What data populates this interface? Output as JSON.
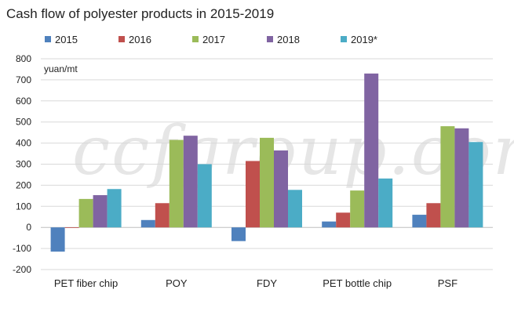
{
  "chart_data": {
    "type": "bar",
    "title": "Cash flow of polyester products in 2015-2019",
    "ylabel": "yuan/mt",
    "xlabel": "",
    "ylim": [
      -200,
      800
    ],
    "yticks": [
      -200,
      -100,
      0,
      100,
      200,
      300,
      400,
      500,
      600,
      700,
      800
    ],
    "grid": true,
    "legend_position": "top",
    "watermark": "ccfgroup.com",
    "categories": [
      "PET fiber chip",
      "POY",
      "FDY",
      "PET bottle chip",
      "PSF"
    ],
    "series": [
      {
        "name": "2015",
        "color": "#4f81bd",
        "values": [
          -115,
          35,
          -65,
          28,
          60
        ]
      },
      {
        "name": "2016",
        "color": "#c0504d",
        "values": [
          -3,
          115,
          315,
          70,
          115
        ]
      },
      {
        "name": "2017",
        "color": "#9bbb59",
        "values": [
          135,
          415,
          425,
          175,
          480
        ]
      },
      {
        "name": "2018",
        "color": "#8064a2",
        "values": [
          153,
          435,
          365,
          730,
          470
        ]
      },
      {
        "name": "2019*",
        "color": "#4bacc6",
        "values": [
          182,
          300,
          178,
          232,
          405
        ]
      }
    ]
  }
}
